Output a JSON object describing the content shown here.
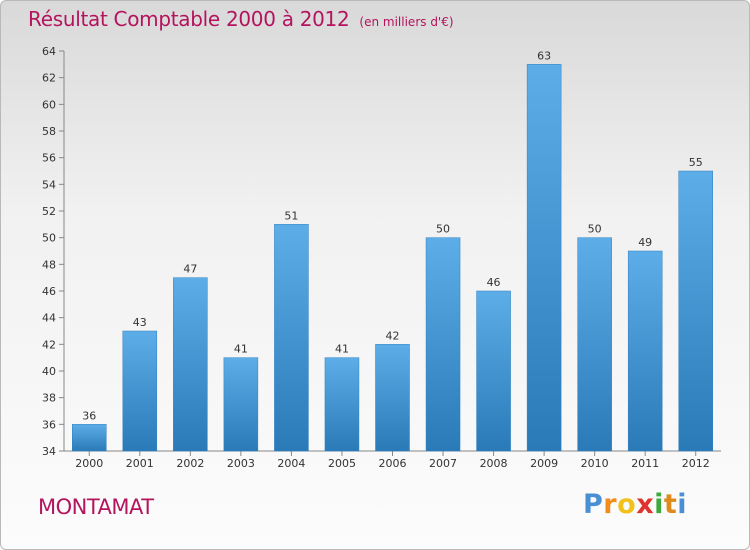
{
  "header": {
    "title": "Résultat Comptable 2000 à 2012",
    "unit": "(en milliers d'€)"
  },
  "footer": {
    "town": "MONTAMAT",
    "logo_letters": [
      "P",
      "r",
      "o",
      "x",
      "i",
      "t",
      "i"
    ]
  },
  "colors": {
    "title": "#b4145d",
    "bar_top": "#5dade8",
    "bar_bottom": "#2a7ab8",
    "logo": [
      "#4a8fd4",
      "#f28c1c",
      "#f2c21c",
      "#e0332e",
      "#3eaa3e",
      "#e08a1c",
      "#4a8fd4"
    ]
  },
  "chart_data": {
    "type": "bar",
    "categories": [
      "2000",
      "2001",
      "2002",
      "2003",
      "2004",
      "2005",
      "2006",
      "2007",
      "2008",
      "2009",
      "2010",
      "2011",
      "2012"
    ],
    "values": [
      36,
      43,
      47,
      41,
      51,
      41,
      42,
      50,
      46,
      63,
      50,
      49,
      55
    ],
    "ylim": [
      34,
      64
    ],
    "yticks": [
      34,
      36,
      38,
      40,
      42,
      44,
      46,
      48,
      50,
      52,
      54,
      56,
      58,
      60,
      62,
      64
    ],
    "grid": false,
    "data_labels": true
  }
}
